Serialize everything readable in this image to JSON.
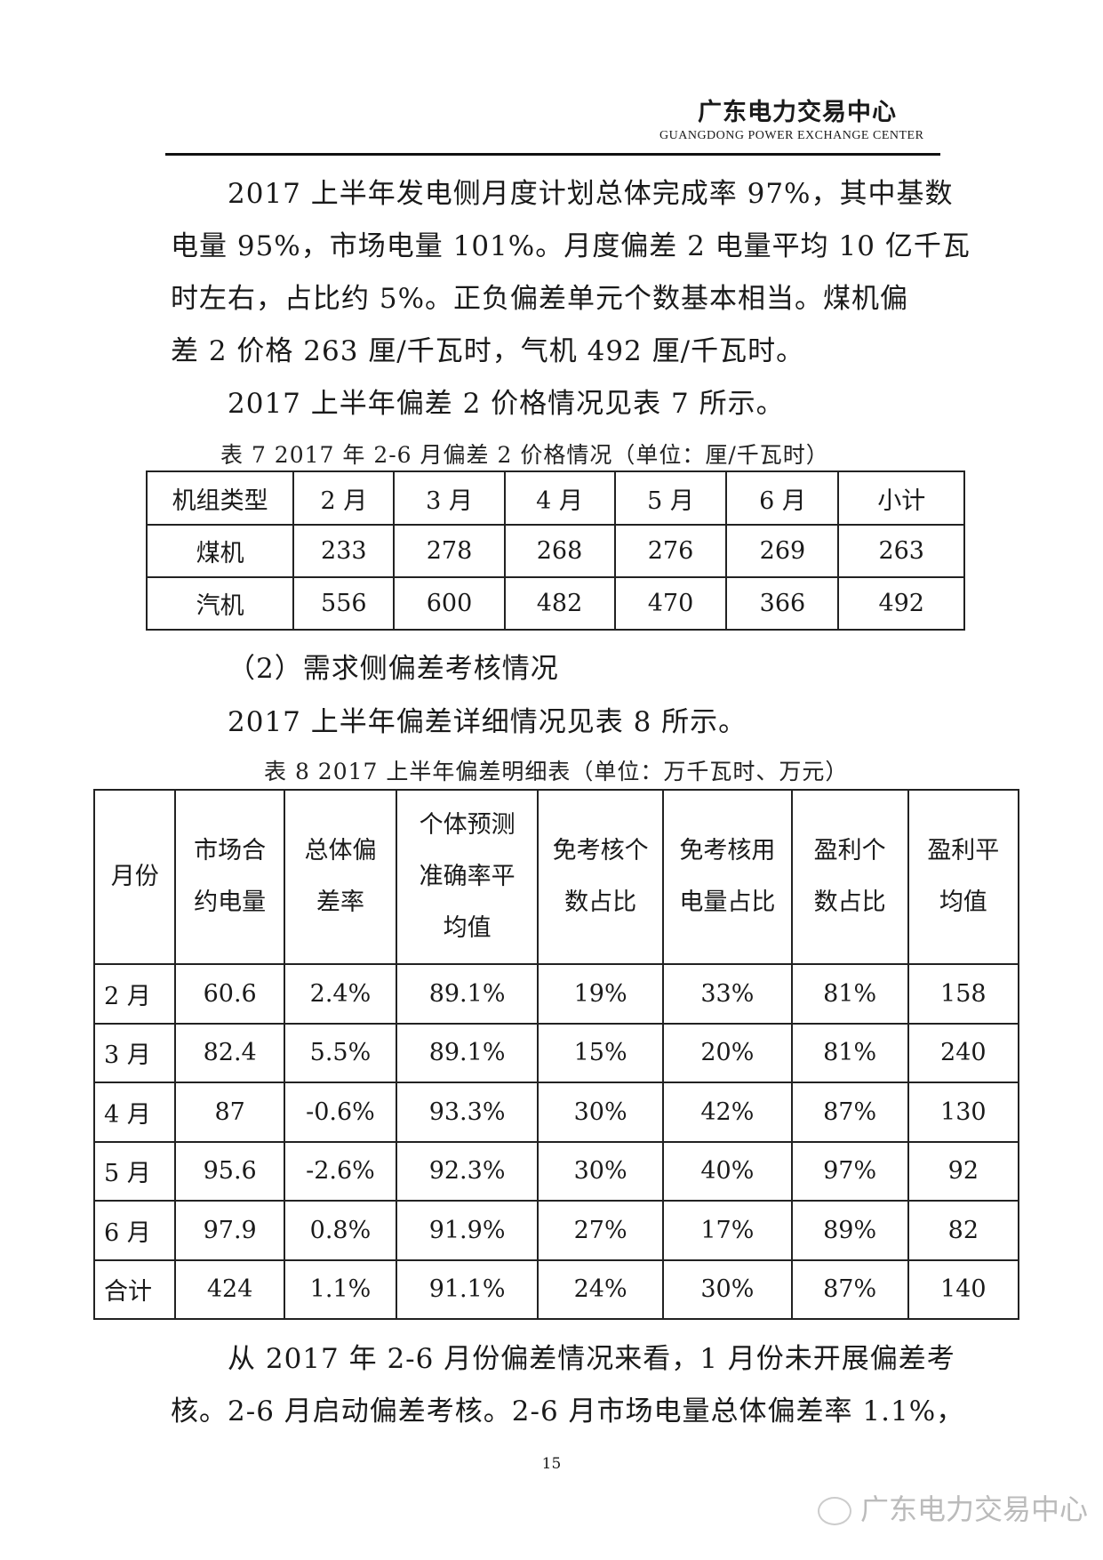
{
  "header": {
    "org_cn": "广东电力交易中心",
    "org_en": "GUANGDONG  POWER EXCHANGE  CENTER"
  },
  "para1": [
    "2017 上半年发电侧月度计划总体完成率 97%，其中基数",
    "电量 95%，市场电量 101%。月度偏差 2 电量平均 10 亿千瓦",
    "时左右，占比约  5%。正负偏差单元个数基本相当。煤机偏",
    "差 2 价格 263 厘/千瓦时，气机 492 厘/千瓦时。"
  ],
  "para2": "2017 上半年偏差 2 价格情况见表 7 所示。",
  "table7": {
    "caption": "表 7 2017 年 2-6 月偏差 2 价格情况（单位：厘/千瓦时）",
    "headers": [
      "机组类型",
      "2 月",
      "3 月",
      "4 月",
      "5 月",
      "6 月",
      "小计"
    ],
    "rows": [
      [
        "煤机",
        "233",
        "278",
        "268",
        "276",
        "269",
        "263"
      ],
      [
        "汽机",
        "556",
        "600",
        "482",
        "470",
        "366",
        "492"
      ]
    ]
  },
  "section2": "（2）需求侧偏差考核情况",
  "para3": "2017 上半年偏差详细情况见表 8 所示。",
  "table8": {
    "caption": "表 8 2017 上半年偏差明细表（单位：万千瓦时、万元）",
    "headers": [
      "月份",
      "市场合约电量",
      "总体偏差率",
      "个体预测准确率平均值",
      "免考核个数占比",
      "免考核用电量占比",
      "盈利个数占比",
      "盈利平均值"
    ],
    "rows": [
      [
        "2 月",
        "60.6",
        "2.4%",
        "89.1%",
        "19%",
        "33%",
        "81%",
        "158"
      ],
      [
        "3 月",
        "82.4",
        "5.5%",
        "89.1%",
        "15%",
        "20%",
        "81%",
        "240"
      ],
      [
        "4 月",
        "87",
        "-0.6%",
        "93.3%",
        "30%",
        "42%",
        "87%",
        "130"
      ],
      [
        "5 月",
        "95.6",
        "-2.6%",
        "92.3%",
        "30%",
        "40%",
        "97%",
        "92"
      ],
      [
        "6 月",
        "97.9",
        "0.8%",
        "91.9%",
        "27%",
        "17%",
        "89%",
        "82"
      ],
      [
        "合计",
        "424",
        "1.1%",
        "91.1%",
        "24%",
        "30%",
        "87%",
        "140"
      ]
    ]
  },
  "para4": [
    "从 2017 年 2-6 月份偏差情况来看，1 月份未开展偏差考",
    "核。2-6 月启动偏差考核。2-6 月市场电量总体偏差率 1.1%，"
  ],
  "page_number": "15",
  "watermark": "广东电力交易中心"
}
